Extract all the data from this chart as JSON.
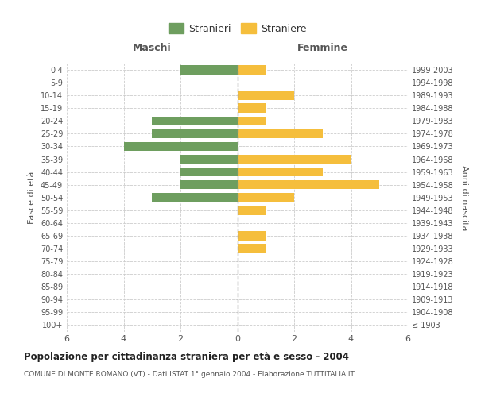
{
  "age_groups": [
    "100+",
    "95-99",
    "90-94",
    "85-89",
    "80-84",
    "75-79",
    "70-74",
    "65-69",
    "60-64",
    "55-59",
    "50-54",
    "45-49",
    "40-44",
    "35-39",
    "30-34",
    "25-29",
    "20-24",
    "15-19",
    "10-14",
    "5-9",
    "0-4"
  ],
  "birth_years": [
    "≤ 1903",
    "1904-1908",
    "1909-1913",
    "1914-1918",
    "1919-1923",
    "1924-1928",
    "1929-1933",
    "1934-1938",
    "1939-1943",
    "1944-1948",
    "1949-1953",
    "1954-1958",
    "1959-1963",
    "1964-1968",
    "1969-1973",
    "1974-1978",
    "1979-1983",
    "1984-1988",
    "1989-1993",
    "1994-1998",
    "1999-2003"
  ],
  "maschi": [
    0,
    0,
    0,
    0,
    0,
    0,
    0,
    0,
    0,
    0,
    3,
    2,
    2,
    2,
    4,
    3,
    3,
    0,
    0,
    0,
    2
  ],
  "femmine": [
    0,
    0,
    0,
    0,
    0,
    0,
    1,
    1,
    0,
    1,
    2,
    5,
    3,
    4,
    0,
    3,
    1,
    1,
    2,
    0,
    1
  ],
  "maschi_color": "#6e9e5f",
  "femmine_color": "#f5be3c",
  "title": "Popolazione per cittadinanza straniera per età e sesso - 2004",
  "subtitle": "COMUNE DI MONTE ROMANO (VT) - Dati ISTAT 1° gennaio 2004 - Elaborazione TUTTITALIA.IT",
  "xlabel_left": "Maschi",
  "xlabel_right": "Femmine",
  "ylabel_left": "Fasce di età",
  "ylabel_right": "Anni di nascita",
  "legend_maschi": "Stranieri",
  "legend_femmine": "Straniere",
  "xlim": 6,
  "background_color": "#ffffff",
  "grid_color": "#cccccc",
  "tick_label_color": "#555555",
  "header_color": "#555555"
}
